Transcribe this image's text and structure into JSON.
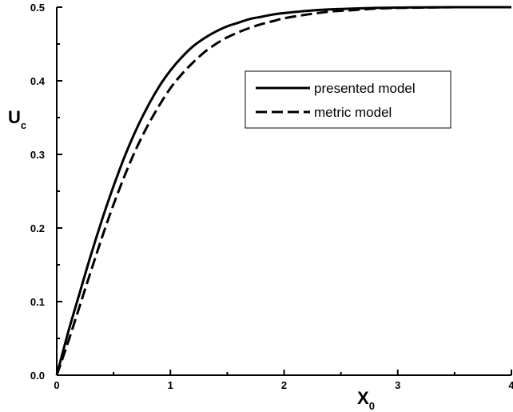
{
  "chart_data": {
    "type": "line",
    "title": "",
    "xlabel": "X",
    "xlabel_sub": "0",
    "ylabel": "U",
    "ylabel_sub": "c",
    "xlim": [
      0,
      4
    ],
    "ylim": [
      0,
      0.5
    ],
    "x_ticks": [
      0,
      1,
      2,
      3,
      4
    ],
    "x_tick_labels": [
      "0",
      "1",
      "2",
      "3",
      "4"
    ],
    "y_ticks": [
      0,
      0.1,
      0.2,
      0.3,
      0.4,
      0.5
    ],
    "y_tick_labels": [
      "0.0",
      "0.1",
      "0.2",
      "0.3",
      "0.4",
      "0.5"
    ],
    "grid": false,
    "legend_position": "top-right",
    "series": [
      {
        "name": "presented model",
        "style": "solid",
        "x": [
          0,
          0.1,
          0.2,
          0.3,
          0.4,
          0.5,
          0.6,
          0.7,
          0.8,
          0.9,
          1.0,
          1.1,
          1.2,
          1.3,
          1.4,
          1.5,
          1.6,
          1.7,
          1.8,
          1.9,
          2.0,
          2.2,
          2.4,
          2.6,
          2.8,
          3.0,
          3.2,
          3.5,
          4.0
        ],
        "y": [
          0,
          0.058,
          0.111,
          0.163,
          0.212,
          0.257,
          0.298,
          0.334,
          0.365,
          0.392,
          0.414,
          0.432,
          0.447,
          0.458,
          0.467,
          0.474,
          0.479,
          0.484,
          0.487,
          0.49,
          0.492,
          0.495,
          0.497,
          0.498,
          0.499,
          0.4995,
          0.4998,
          0.5,
          0.5
        ]
      },
      {
        "name": "metric model",
        "style": "dashed",
        "x": [
          0,
          0.1,
          0.2,
          0.3,
          0.4,
          0.5,
          0.6,
          0.7,
          0.8,
          0.9,
          1.0,
          1.1,
          1.2,
          1.3,
          1.4,
          1.5,
          1.6,
          1.7,
          1.8,
          1.9,
          2.0,
          2.2,
          2.4,
          2.6,
          2.8,
          3.0,
          3.2,
          3.5,
          4.0
        ],
        "y": [
          0,
          0.045,
          0.093,
          0.141,
          0.188,
          0.232,
          0.272,
          0.308,
          0.339,
          0.366,
          0.39,
          0.409,
          0.425,
          0.439,
          0.45,
          0.459,
          0.466,
          0.472,
          0.477,
          0.481,
          0.485,
          0.49,
          0.494,
          0.496,
          0.498,
          0.499,
          0.4995,
          0.5,
          0.5
        ]
      }
    ]
  },
  "colors": {
    "axis": "#000000",
    "series": "#000000",
    "background": "#ffffff"
  }
}
